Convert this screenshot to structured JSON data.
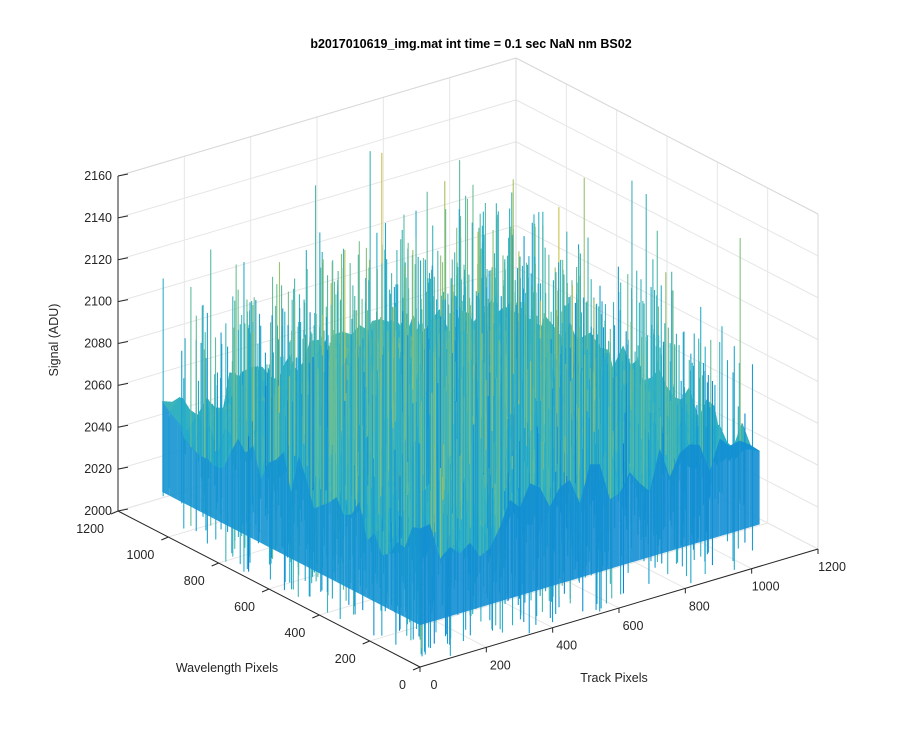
{
  "chart_data": {
    "type": "surface",
    "title": "b2017010619_img.mat int time = 0.1 sec  NaN nm BS02",
    "xlabel": "Track Pixels",
    "ylabel": "Wavelength Pixels",
    "zlabel": "Signal (ADU)",
    "xlim": [
      0,
      1200
    ],
    "ylim": [
      0,
      1200
    ],
    "zlim": [
      2000,
      2160
    ],
    "x_ticks": [
      "0",
      "200",
      "400",
      "600",
      "800",
      "1000",
      "1200"
    ],
    "y_ticks": [
      "0",
      "200",
      "400",
      "600",
      "800",
      "1000",
      "1200"
    ],
    "z_ticks": [
      "2000",
      "2020",
      "2040",
      "2060",
      "2080",
      "2100",
      "2120",
      "2140",
      "2160"
    ],
    "data_extent": {
      "x": [
        0,
        1024
      ],
      "y": [
        0,
        1024
      ]
    },
    "signal_profile": {
      "typical_min": 2010,
      "typical_max": 2125,
      "peak_max": 2160,
      "edge_mean": 2055,
      "center_mean": 2085
    },
    "grid": true,
    "colormap": "parula",
    "colors": {
      "low": "#0d72d8",
      "mid": "#2bb0c7",
      "high": "#e0c340"
    }
  }
}
